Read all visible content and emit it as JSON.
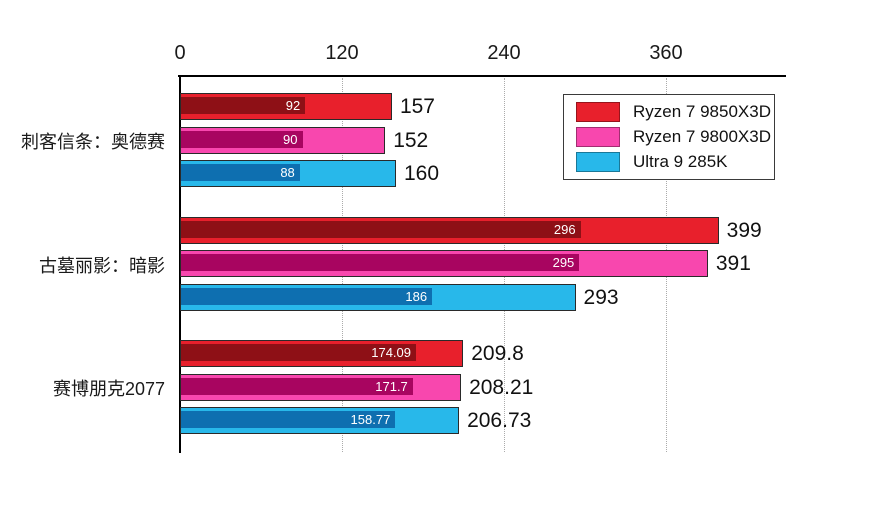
{
  "chart_data": {
    "type": "bar",
    "orientation": "horizontal",
    "title": "",
    "categories": [
      "刺客信条：奥德赛",
      "古墓丽影：暗影",
      "赛博朋克2077"
    ],
    "series": [
      {
        "name": "Ryzen 7 9850X3D",
        "color": "#e8202c",
        "inner_color": "#8e1016",
        "outer_values": [
          157,
          399,
          209.8
        ],
        "inner_values": [
          92,
          296,
          174.09
        ]
      },
      {
        "name": "Ryzen 7 9800X3D",
        "color": "#f847ae",
        "inner_color": "#a80560",
        "outer_values": [
          152,
          391,
          208.21
        ],
        "inner_values": [
          90,
          295,
          171.7
        ]
      },
      {
        "name": "Ultra 9 285K",
        "color": "#28b8ea",
        "inner_color": "#0e6fb0",
        "outer_values": [
          160,
          293,
          206.73
        ],
        "inner_values": [
          88,
          186,
          158.77
        ]
      }
    ],
    "x_axis": {
      "position": "top",
      "ticks": [
        0,
        120,
        240,
        360
      ],
      "max": 448
    },
    "grid": "dotted-vertical",
    "legend": {
      "position": "top-right"
    },
    "label_colors": {
      "inner_label": "#ffffff",
      "outer_label": "#111111",
      "axis_label": "#1a1a1a"
    }
  }
}
